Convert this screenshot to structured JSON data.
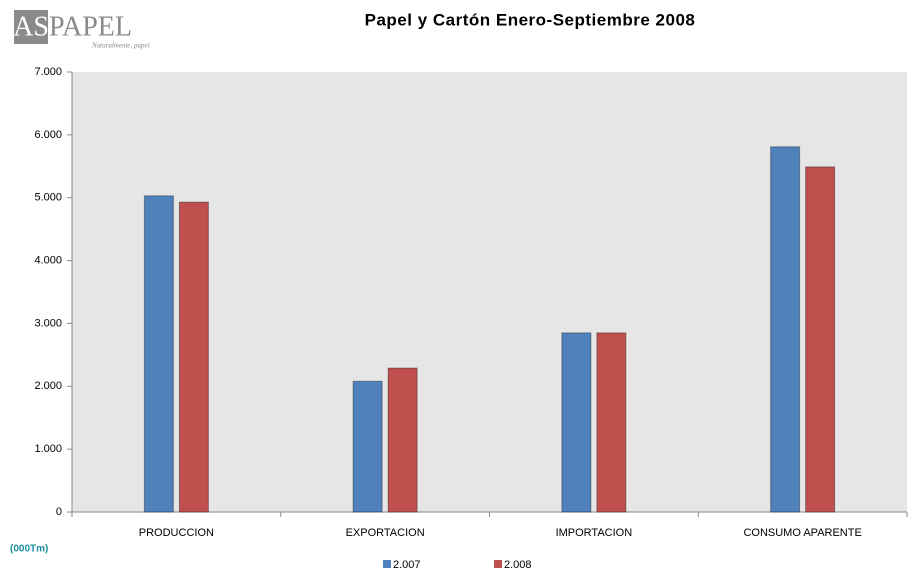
{
  "logo": {
    "left": "AS",
    "right": "PAPEL",
    "tagline": "Naturalmente, papel"
  },
  "chart_data": {
    "type": "bar",
    "title": "Papel y Cartón Enero-Septiembre 2008",
    "unit_label": "(000Tm)",
    "categories": [
      "PRODUCCION",
      "EXPORTACION",
      "IMPORTACION",
      "CONSUMO  APARENTE"
    ],
    "series": [
      {
        "name": "2.007",
        "color": "#4f81bd",
        "values": [
          5030,
          2080,
          2850,
          5810
        ]
      },
      {
        "name": "2.008",
        "color": "#c0504d",
        "values": [
          4930,
          2290,
          2850,
          5490
        ]
      }
    ],
    "ylim": [
      0,
      7000
    ],
    "yticks": [
      0,
      {
        "value": 1000,
        "label": "1.000"
      },
      {
        "value": 2000,
        "label": "2.000"
      },
      {
        "value": 3000,
        "label": "3.000"
      },
      {
        "value": 4000,
        "label": "4.000"
      },
      {
        "value": 5000,
        "label": "5.000"
      },
      {
        "value": 6000,
        "label": "6.000"
      },
      {
        "value": 7000,
        "label": "7.000"
      }
    ],
    "plot_background": "#e6e6e6"
  }
}
